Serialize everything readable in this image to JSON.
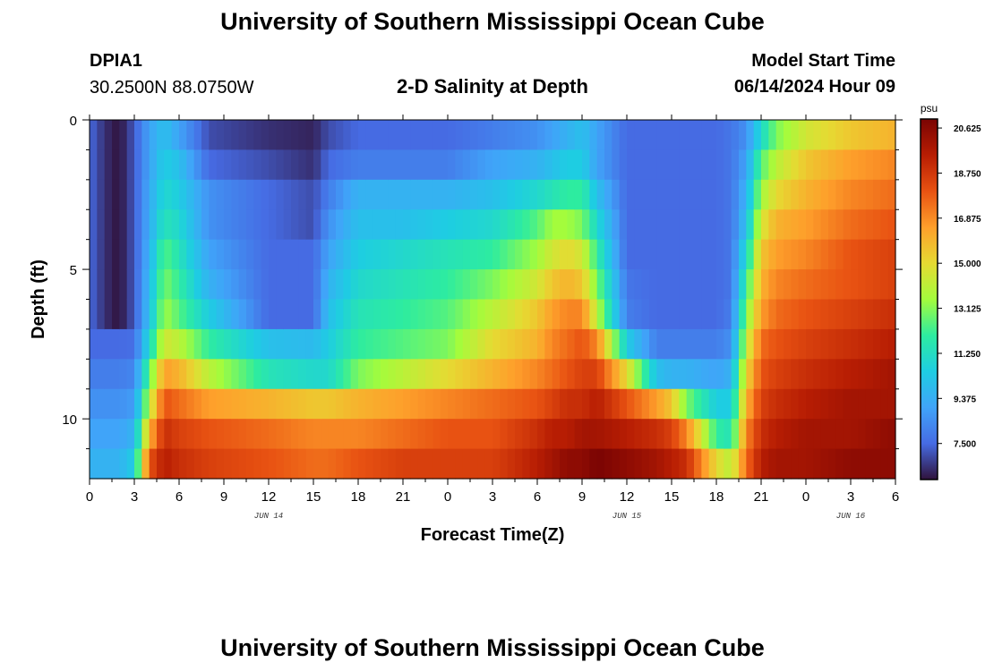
{
  "header": {
    "title": "University of Southern Mississippi Ocean Cube",
    "station": "DPIA1",
    "coords": "30.2500N  88.0750W",
    "subtitle": "2-D Salinity at Depth",
    "start_label": "Model Start Time",
    "start_value": "06/14/2024 Hour 09"
  },
  "footer": {
    "title": "University of Southern Mississippi Ocean Cube"
  },
  "chart_data": {
    "type": "heatmap",
    "title": "2-D Salinity at Depth",
    "xlabel": "Forecast Time(Z)",
    "ylabel": "Depth (ft)",
    "x_ticks": [
      "0",
      "3",
      "6",
      "9",
      "12",
      "15",
      "18",
      "21",
      "0",
      "3",
      "6",
      "9",
      "12",
      "15",
      "18",
      "21",
      "0",
      "3",
      "6"
    ],
    "x_range_hours": [
      0,
      54
    ],
    "date_labels": [
      {
        "text": "JUN 14",
        "hour": 12
      },
      {
        "text": "JUN 15",
        "hour": 36
      },
      {
        "text": "JUN 16",
        "hour": 51
      }
    ],
    "y_ticks": [
      "0",
      "5",
      "10"
    ],
    "y_range_ft": [
      0,
      12
    ],
    "colorbar": {
      "unit": "psu",
      "min": 6.0,
      "max": 21.0,
      "labels": [
        "20.625",
        "18.750",
        "16.875",
        "15.000",
        "13.125",
        "11.250",
        "9.375",
        "7.500"
      ],
      "label_values": [
        20.625,
        18.75,
        16.875,
        15.0,
        13.125,
        11.25,
        9.375,
        7.5
      ]
    },
    "depth_levels_ft": [
      0.5,
      1.5,
      2.5,
      3.5,
      4.5,
      5.5,
      6.5,
      7.5,
      8.5,
      9.5,
      10.5,
      11.5
    ],
    "profile_hours": [
      0,
      1,
      2,
      3,
      4,
      5,
      6,
      8,
      12,
      15,
      16,
      18,
      21,
      24,
      27,
      30,
      31,
      32,
      33,
      34,
      36,
      38,
      39,
      40,
      42,
      43,
      44,
      45,
      46,
      48,
      51,
      54
    ],
    "salinity_psu": [
      [
        7.5,
        7.5,
        7.5,
        7.5,
        7.5,
        7.5,
        7.5,
        7.5,
        8.0,
        8.5,
        9.0,
        9.5
      ],
      [
        6.5,
        6.5,
        6.5,
        6.5,
        6.5,
        6.5,
        6.5,
        7.5,
        8.0,
        8.5,
        9.0,
        9.5
      ],
      [
        6.0,
        6.0,
        6.0,
        6.0,
        6.0,
        6.0,
        6.0,
        7.5,
        8.0,
        8.5,
        9.0,
        9.5
      ],
      [
        7.2,
        7.2,
        7.2,
        7.2,
        7.2,
        7.2,
        7.2,
        7.6,
        8.2,
        8.8,
        9.6,
        10.5
      ],
      [
        9.0,
        9.0,
        9.2,
        9.3,
        9.5,
        9.8,
        10.0,
        11.0,
        12.5,
        14.0,
        16.0,
        18.0
      ],
      [
        10.0,
        10.5,
        11.0,
        11.5,
        12.5,
        13.0,
        13.5,
        14.5,
        16.5,
        18.0,
        19.0,
        19.5
      ],
      [
        9.0,
        10.0,
        10.5,
        11.0,
        11.5,
        12.0,
        12.5,
        14.0,
        16.0,
        17.5,
        18.5,
        19.0
      ],
      [
        7.0,
        7.5,
        8.5,
        8.5,
        9.0,
        9.5,
        10.5,
        12.0,
        14.0,
        16.5,
        18.0,
        18.5
      ],
      [
        6.5,
        7.0,
        7.5,
        7.5,
        7.5,
        7.5,
        7.5,
        10.0,
        11.5,
        16.0,
        17.5,
        18.0
      ],
      [
        6.3,
        6.5,
        7.0,
        7.0,
        7.5,
        7.5,
        7.5,
        9.8,
        11.0,
        15.5,
        17.0,
        17.5
      ],
      [
        7.0,
        7.5,
        8.0,
        8.5,
        9.0,
        9.5,
        10.0,
        10.5,
        11.0,
        15.5,
        17.0,
        17.5
      ],
      [
        7.5,
        8.0,
        9.5,
        10.0,
        10.5,
        11.0,
        11.5,
        12.0,
        13.0,
        16.0,
        17.0,
        18.0
      ],
      [
        7.5,
        8.0,
        9.5,
        10.0,
        11.0,
        11.5,
        12.0,
        12.5,
        14.0,
        16.5,
        17.5,
        18.5
      ],
      [
        7.5,
        8.0,
        9.5,
        10.5,
        11.5,
        12.0,
        12.5,
        13.0,
        15.0,
        17.0,
        18.0,
        18.5
      ],
      [
        8.0,
        9.0,
        10.0,
        11.0,
        12.0,
        13.0,
        14.0,
        15.0,
        16.0,
        17.5,
        18.0,
        18.5
      ],
      [
        8.5,
        9.5,
        11.0,
        12.5,
        13.5,
        14.5,
        15.5,
        16.0,
        17.0,
        18.0,
        19.0,
        19.5
      ],
      [
        9.0,
        10.0,
        11.5,
        13.5,
        14.5,
        15.5,
        16.5,
        17.0,
        17.5,
        18.5,
        19.5,
        20.0
      ],
      [
        9.5,
        10.5,
        12.0,
        13.5,
        15.0,
        16.0,
        17.0,
        17.5,
        18.0,
        19.0,
        19.5,
        20.5
      ],
      [
        10.0,
        10.5,
        12.0,
        13.0,
        14.5,
        15.5,
        17.0,
        18.0,
        18.5,
        19.0,
        20.0,
        20.5
      ],
      [
        9.0,
        9.0,
        10.0,
        11.0,
        12.0,
        13.0,
        14.0,
        17.0,
        18.5,
        19.5,
        20.0,
        21.0
      ],
      [
        7.5,
        7.5,
        7.5,
        7.5,
        7.5,
        7.8,
        8.0,
        10.5,
        15.0,
        18.0,
        19.5,
        20.5
      ],
      [
        7.5,
        7.5,
        7.5,
        7.5,
        7.5,
        7.5,
        7.5,
        8.0,
        10.0,
        16.5,
        19.0,
        20.0
      ],
      [
        7.5,
        7.5,
        7.5,
        7.5,
        7.5,
        7.5,
        7.5,
        8.0,
        9.5,
        15.5,
        18.5,
        19.5
      ],
      [
        7.5,
        7.5,
        7.5,
        7.5,
        7.5,
        7.5,
        7.5,
        8.0,
        9.5,
        13.0,
        17.0,
        19.0
      ],
      [
        7.5,
        7.5,
        7.5,
        7.5,
        7.5,
        7.5,
        7.5,
        8.0,
        9.0,
        10.5,
        12.0,
        15.0
      ],
      [
        7.8,
        7.8,
        7.8,
        7.8,
        7.8,
        7.8,
        8.0,
        8.5,
        9.5,
        10.5,
        11.5,
        14.0
      ],
      [
        8.5,
        9.0,
        9.5,
        10.0,
        11.0,
        12.0,
        13.0,
        14.0,
        15.0,
        16.0,
        17.0,
        17.5
      ],
      [
        11.0,
        12.5,
        13.5,
        14.5,
        15.5,
        16.0,
        16.5,
        17.5,
        18.0,
        18.5,
        19.0,
        19.5
      ],
      [
        13.0,
        14.0,
        15.0,
        16.0,
        16.5,
        17.0,
        17.5,
        18.0,
        18.5,
        19.0,
        19.5,
        20.0
      ],
      [
        14.5,
        15.5,
        16.0,
        16.5,
        17.0,
        17.5,
        18.0,
        18.5,
        19.0,
        19.5,
        20.0,
        20.0
      ],
      [
        15.5,
        16.5,
        17.0,
        17.5,
        18.0,
        18.0,
        18.5,
        19.0,
        19.5,
        20.0,
        20.0,
        20.5
      ],
      [
        16.0,
        17.0,
        17.5,
        18.0,
        18.5,
        18.5,
        19.0,
        19.5,
        20.0,
        20.0,
        20.5,
        20.5
      ]
    ]
  }
}
